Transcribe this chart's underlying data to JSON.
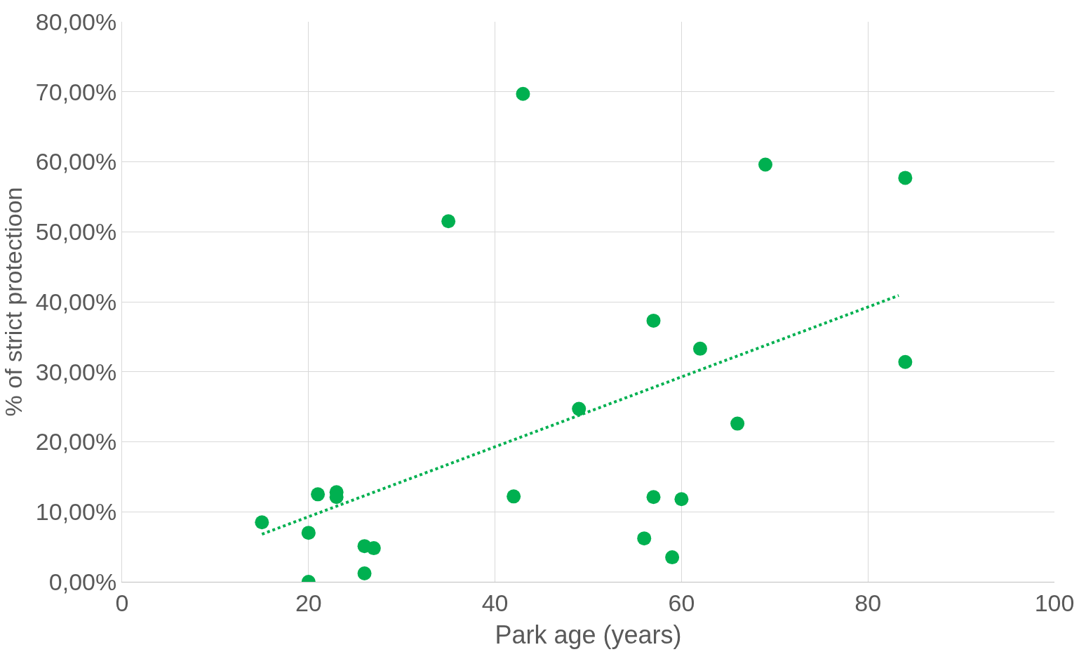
{
  "chart_data": {
    "type": "scatter",
    "xlabel": "Park age (years)",
    "ylabel": "% of strict protectioon",
    "xlim": [
      0,
      100
    ],
    "xticks": [
      0,
      20,
      40,
      60,
      80,
      100
    ],
    "ylim": [
      0,
      80
    ],
    "yticks": [
      {
        "value": 0,
        "label": "0,00%"
      },
      {
        "value": 10,
        "label": "10,00%"
      },
      {
        "value": 20,
        "label": "20,00%"
      },
      {
        "value": 30,
        "label": "30,00%"
      },
      {
        "value": 40,
        "label": "40,00%"
      },
      {
        "value": 50,
        "label": "50,00%"
      },
      {
        "value": 60,
        "label": "60,00%"
      },
      {
        "value": 70,
        "label": "70,00%"
      },
      {
        "value": 80,
        "label": "80,00%"
      }
    ],
    "grid": true,
    "legend": false,
    "series": [
      {
        "color": "#00b050",
        "marker": "circle",
        "x": [
          15,
          20,
          20,
          21,
          23,
          23,
          26,
          27,
          26,
          35,
          42,
          43,
          49,
          56,
          57,
          57,
          59,
          60,
          62,
          66,
          69,
          84,
          84
        ],
        "values": [
          8.5,
          7.0,
          0,
          12.5,
          12.8,
          12.1,
          5.1,
          4.8,
          1.2,
          51.5,
          12.2,
          69.7,
          24.7,
          6.2,
          37.3,
          12.1,
          3.5,
          11.8,
          33.3,
          22.6,
          59.6,
          57.7,
          31.4
        ]
      },
      {
        "type": "line",
        "color": "#00b050",
        "marker": "none",
        "line_style": "dotted",
        "x": [
          15,
          83.3
        ],
        "values": [
          6.8,
          40.9
        ]
      }
    ]
  }
}
